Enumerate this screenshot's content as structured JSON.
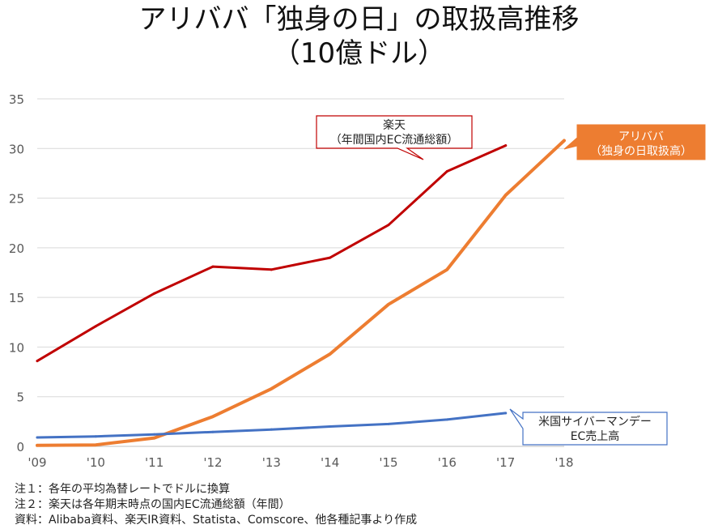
{
  "title": {
    "line1": "アリババ「独身の日」の取扱高推移",
    "line2": "（10億ドル）"
  },
  "chart_data": {
    "type": "line",
    "title": "アリババ「独身の日」の取扱高推移（10億ドル）",
    "xlabel": "",
    "ylabel": "",
    "categories": [
      "'09",
      "'10",
      "'11",
      "'12",
      "'13",
      "'14",
      "'15",
      "'16",
      "'17",
      "'18"
    ],
    "ylim": [
      0,
      35
    ],
    "yticks": [
      0,
      5,
      10,
      15,
      20,
      25,
      30,
      35
    ],
    "grid": true,
    "series": [
      {
        "name": "楽天",
        "label_lines": [
          "楽天",
          "（年間国内EC流通総額）"
        ],
        "color": "#c00000",
        "values": [
          8.6,
          12.1,
          15.4,
          18.1,
          17.8,
          19.0,
          22.3,
          27.7,
          30.3,
          null
        ]
      },
      {
        "name": "アリババ",
        "label_lines": [
          "アリババ",
          "（独身の日取扱高）"
        ],
        "color": "#ed7d31",
        "values": [
          0.1,
          0.15,
          0.85,
          3.0,
          5.8,
          9.3,
          14.3,
          17.8,
          25.3,
          30.8
        ]
      },
      {
        "name": "米国サイバーマンデー",
        "label_lines": [
          "米国サイバーマンデー",
          "EC売上高"
        ],
        "color": "#4472c4",
        "values": [
          0.9,
          1.0,
          1.2,
          1.45,
          1.7,
          2.0,
          2.25,
          2.7,
          3.35,
          null
        ]
      }
    ]
  },
  "notes": [
    "注１：各年の平均為替レートでドルに換算",
    "注２：楽天は各年期末時点の国内EC流通総額（年間）",
    "資料：Alibaba資料、楽天IR資料、Statista、Comscore、他各種記事より作成"
  ]
}
